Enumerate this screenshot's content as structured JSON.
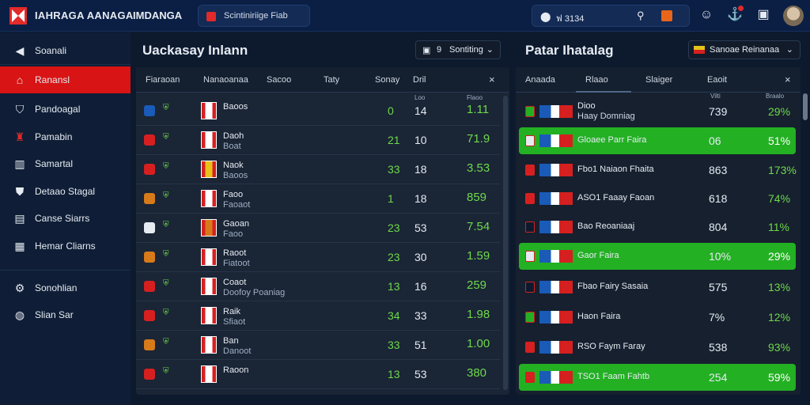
{
  "topbar": {
    "brand": "IAHRAGA AANAGA",
    "brand2": "IMDANGA",
    "search_label": "Scintiniriige Fiab",
    "location_text": "ฟ 3134",
    "icons": [
      "home-icon",
      "search-icon",
      "notification-icon",
      "emoji-icon",
      "anchor-icon",
      "chat-icon"
    ]
  },
  "sidebar": {
    "items": [
      {
        "label": "Soanali",
        "icon": "arrow-left-icon"
      },
      {
        "label": "Ranansl",
        "icon": "home-icon",
        "active": true
      },
      {
        "label": "Pandoagal",
        "icon": "shield-icon"
      },
      {
        "label": "Pamabin",
        "icon": "figure-icon"
      },
      {
        "label": "Samartal",
        "icon": "chart-icon"
      },
      {
        "label": "Detaao Stagal",
        "icon": "badge-icon"
      },
      {
        "label": "Canse Siarrs",
        "icon": "list-icon"
      },
      {
        "label": "Hemar Cliarns",
        "icon": "grid-icon"
      },
      {
        "label": "Sonohlian",
        "icon": "settings-icon"
      },
      {
        "label": "Slian Sar",
        "icon": "globe-icon"
      }
    ]
  },
  "left_panel": {
    "title": "Uackasay Inlann",
    "dropdown": {
      "num": "9",
      "label": "Sontiting"
    },
    "headers": [
      "Fiaraoan",
      "Nanaoanaa",
      "Sacoo",
      "Taty",
      "Sonay",
      "Dril"
    ],
    "close": "×",
    "col_sub": [
      "Loo",
      "Flaoo"
    ],
    "rows": [
      {
        "name": "Baoos",
        "sub": "",
        "a": "0",
        "b": "14",
        "c": "1.11",
        "icon_color": "#1a5bb8"
      },
      {
        "name": "Daoh",
        "sub": "Boat",
        "a": "21",
        "b": "10",
        "c": "71.9",
        "icon_color": "#d62020"
      },
      {
        "name": "Naok",
        "sub": "Baoos",
        "a": "33",
        "b": "18",
        "c": "3.53",
        "icon_color": "#d62020"
      },
      {
        "name": "Faoo",
        "sub": "Faoaot",
        "a": "1",
        "b": "18",
        "c": "859",
        "icon_color": "#d67a1a"
      },
      {
        "name": "Gaoan",
        "sub": "Faoo",
        "a": "23",
        "b": "53",
        "c": "7.54",
        "icon_color": "#e6ebf2"
      },
      {
        "name": "Raoot",
        "sub": "Fiatoot",
        "a": "23",
        "b": "30",
        "c": "1.59",
        "icon_color": "#d67a1a"
      },
      {
        "name": "Coaot",
        "sub": "Doofoy Poaniag",
        "a": "13",
        "b": "16",
        "c": "259",
        "icon_color": "#d62020"
      },
      {
        "name": "Raik",
        "sub": "Sfiaot",
        "a": "34",
        "b": "33",
        "c": "1.98",
        "icon_color": "#d62020"
      },
      {
        "name": "Ban",
        "sub": "Danoot",
        "a": "33",
        "b": "51",
        "c": "1.00",
        "icon_color": "#d67a1a"
      },
      {
        "name": "Raoon",
        "sub": "",
        "a": "13",
        "b": "53",
        "c": "380",
        "icon_color": "#d62020"
      }
    ]
  },
  "right_panel": {
    "title": "Patar Ihatalag",
    "dropdown": {
      "label": "Sanoae Reinanaa"
    },
    "tabs": [
      "Anaada",
      "Rlaao",
      "Slaiger",
      "Eaoit"
    ],
    "close": "×",
    "col_sub": [
      "Vilti",
      "Braalo"
    ],
    "rows": [
      {
        "name": "Dioo",
        "sub": "Haay Domniag",
        "v1": "739",
        "v2": "29%",
        "hl": false,
        "icon_color": "#23b023"
      },
      {
        "name": "Gloaee Parr Faira",
        "sub": "",
        "v1": "06",
        "v2": "51%",
        "hl": true,
        "icon_color": "#e6ebf2"
      },
      {
        "name": "Fbo1 Naiaon Fhaita",
        "sub": "",
        "v1": "863",
        "v2": "173%",
        "hl": false,
        "icon_color": "#d62020"
      },
      {
        "name": "ASO1 Faaay Faoan",
        "sub": "",
        "v1": "618",
        "v2": "74%",
        "hl": false,
        "icon_color": "#d62020"
      },
      {
        "name": "Bao Reoaniaaj",
        "sub": "",
        "v1": "804",
        "v2": "11%",
        "hl": false,
        "icon_color": "#0d1a2e"
      },
      {
        "name": "Gaor Faira",
        "sub": "",
        "v1": "10%",
        "v2": "29%",
        "hl": true,
        "icon_color": "#e6ebf2"
      },
      {
        "name": "Fbao Fairy Sasaia",
        "sub": "",
        "v1": "575",
        "v2": "13%",
        "hl": false,
        "icon_color": "#0d1a2e"
      },
      {
        "name": "Haon Faira",
        "sub": "",
        "v1": "7%",
        "v2": "12%",
        "hl": false,
        "icon_color": "#23b023"
      },
      {
        "name": "RSO Faym Faray",
        "sub": "",
        "v1": "538",
        "v2": "93%",
        "hl": false,
        "icon_color": "#d62020"
      },
      {
        "name": "TSO1 Faam Fahtb",
        "sub": "",
        "v1": "254",
        "v2": "59%",
        "hl": true,
        "icon_color": "#d62020"
      }
    ]
  },
  "colors": {
    "accent_red": "#d81414",
    "accent_green": "#23b023",
    "value_green": "#6fd94a",
    "topbar": "#0b1f44"
  }
}
